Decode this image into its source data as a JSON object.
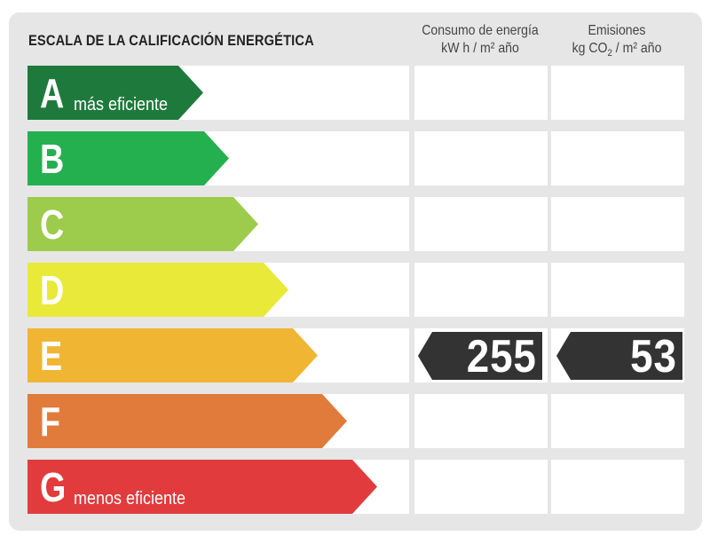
{
  "title": "ESCALA DE LA CALIFICACIÓN ENERGÉTICA",
  "columns": {
    "consumo": {
      "line1": "Consumo de energía",
      "line2": "kW h / m² año"
    },
    "emisiones": {
      "line1": "Emisiones",
      "line2_pre": "kg CO",
      "line2_sub": "2",
      "line2_post": " / m² año"
    }
  },
  "rows": [
    {
      "letter": "A",
      "color": "#1e7a3c",
      "sublabel": "más eficiente"
    },
    {
      "letter": "B",
      "color": "#25b04f"
    },
    {
      "letter": "C",
      "color": "#9dcb4b"
    },
    {
      "letter": "D",
      "color": "#e9e93a"
    },
    {
      "letter": "E",
      "color": "#f0b533"
    },
    {
      "letter": "F",
      "color": "#e17b3b"
    },
    {
      "letter": "G",
      "color": "#e23b3d",
      "sublabel": "menos eficiente"
    }
  ],
  "rating": {
    "row": "E",
    "consumo": "255",
    "emisiones": "53",
    "tag_color": "#333333"
  }
}
